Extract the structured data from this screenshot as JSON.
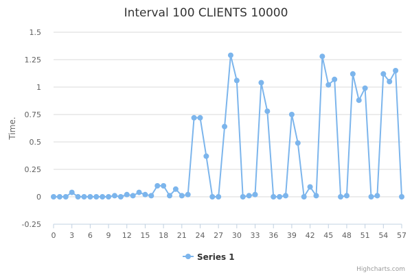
{
  "chart_data": {
    "type": "line",
    "title": "Interval 100 CLIENTS 10000",
    "xlabel": "",
    "ylabel": "Time.",
    "xlim": [
      0,
      57
    ],
    "ylim": [
      -0.25,
      1.5
    ],
    "x_ticks": [
      "0",
      "3",
      "6",
      "9",
      "12",
      "15",
      "18",
      "21",
      "24",
      "27",
      "30",
      "33",
      "36",
      "39",
      "42",
      "45",
      "48",
      "51",
      "54",
      "57"
    ],
    "y_ticks": [
      "1.5",
      "1.25",
      "1",
      "0.75",
      "0.5",
      "0.25",
      "0",
      "-0.25"
    ],
    "grid": true,
    "legend": "bottom-center",
    "credits": "Highcharts.com",
    "series": [
      {
        "name": "Series 1",
        "color": "#7cb5ec",
        "x": [
          0,
          1,
          2,
          3,
          4,
          5,
          6,
          7,
          8,
          9,
          10,
          11,
          12,
          13,
          14,
          15,
          16,
          17,
          18,
          19,
          20,
          21,
          22,
          23,
          24,
          25,
          26,
          27,
          28,
          29,
          30,
          31,
          32,
          33,
          34,
          35,
          36,
          37,
          38,
          39,
          40,
          41,
          42,
          43,
          44,
          45,
          46,
          47,
          48,
          49,
          50,
          51,
          52,
          53,
          54,
          55,
          56,
          57
        ],
        "values": [
          0.0,
          0.0,
          0.0,
          0.04,
          0.0,
          0.0,
          0.0,
          0.0,
          0.0,
          0.0,
          0.01,
          0.0,
          0.02,
          0.01,
          0.04,
          0.02,
          0.01,
          0.1,
          0.1,
          0.01,
          0.07,
          0.01,
          0.02,
          0.72,
          0.72,
          0.37,
          0.0,
          0.0,
          0.64,
          1.29,
          1.06,
          0.0,
          0.01,
          0.02,
          1.04,
          0.78,
          0.0,
          0.0,
          0.01,
          0.75,
          0.49,
          0.0,
          0.09,
          0.01,
          1.28,
          1.02,
          1.07,
          0.0,
          0.01,
          1.12,
          0.88,
          0.99,
          0.0,
          0.01,
          1.12,
          1.05,
          1.15,
          0.0
        ]
      }
    ]
  }
}
